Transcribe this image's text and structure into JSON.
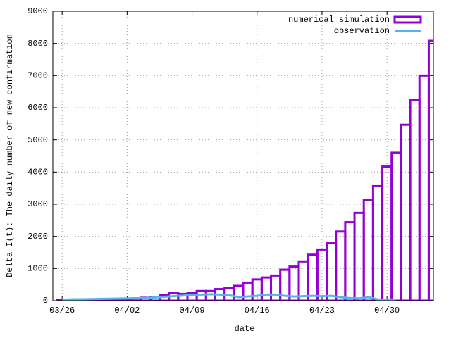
{
  "chart_data": {
    "type": "bar",
    "xlabel": "date",
    "ylabel": "Delta I(t): The daily number of new confirmation",
    "x": [
      "03/26",
      "03/27",
      "03/28",
      "03/29",
      "03/30",
      "03/31",
      "04/01",
      "04/02",
      "04/03",
      "04/04",
      "04/05",
      "04/06",
      "04/07",
      "04/08",
      "04/09",
      "04/10",
      "04/11",
      "04/12",
      "04/13",
      "04/14",
      "04/15",
      "04/16",
      "04/17",
      "04/18",
      "04/19",
      "04/20",
      "04/21",
      "04/22",
      "04/23",
      "04/24",
      "04/25",
      "04/26",
      "04/27",
      "04/28",
      "04/29",
      "04/30",
      "05/01",
      "05/02",
      "05/03",
      "05/04",
      "05/05"
    ],
    "series": [
      {
        "name": "numerical simulation",
        "type": "bar",
        "color": "#9400d3",
        "values": [
          20,
          25,
          30,
          35,
          40,
          40,
          50,
          60,
          70,
          90,
          120,
          170,
          230,
          210,
          250,
          300,
          300,
          360,
          400,
          460,
          560,
          660,
          720,
          780,
          960,
          1060,
          1220,
          1430,
          1590,
          1790,
          2150,
          2440,
          2730,
          3120,
          3560,
          4170,
          4600,
          5470,
          6240,
          7000,
          8080
        ]
      },
      {
        "name": "observation",
        "type": "line",
        "color": "#56b4e9",
        "values": [
          30,
          40,
          45,
          50,
          55,
          60,
          65,
          70,
          75,
          80,
          100,
          120,
          140,
          160,
          180,
          190,
          200,
          190,
          170,
          110,
          130,
          150,
          190,
          190,
          150,
          130,
          140,
          150,
          140,
          150,
          110,
          80,
          70,
          110,
          40,
          20,
          10,
          null,
          null,
          null,
          null
        ]
      }
    ],
    "xlim": [
      "03/25",
      "05/05"
    ],
    "xticks": [
      "03/26",
      "04/02",
      "04/09",
      "04/16",
      "04/23",
      "04/30"
    ],
    "ylim": [
      0,
      9000
    ],
    "yticks": [
      0,
      1000,
      2000,
      3000,
      4000,
      5000,
      6000,
      7000,
      8000,
      9000
    ],
    "grid": true,
    "legend": "top-right"
  }
}
